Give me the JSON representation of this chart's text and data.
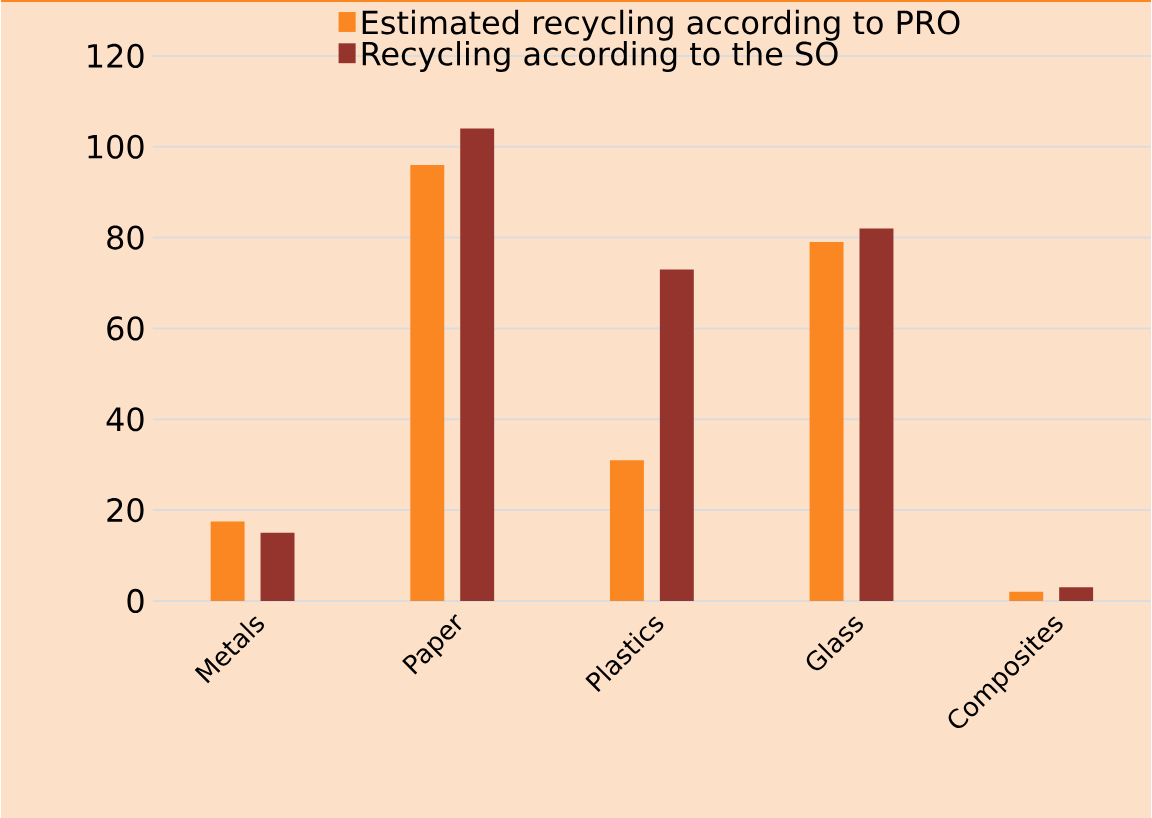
{
  "chart_data": {
    "type": "bar",
    "categories": [
      "Metals",
      "Paper",
      "Plastics",
      "Glass",
      "Composites"
    ],
    "series": [
      {
        "name": "Estimated recycling according to PRO",
        "color": "#fb8722",
        "values": [
          17.5,
          96,
          31,
          79,
          2
        ]
      },
      {
        "name": "Recycling according to the SO",
        "color": "#94342d",
        "values": [
          15,
          104,
          73,
          82,
          3
        ]
      }
    ],
    "ylim": [
      0,
      120
    ],
    "yticks": [
      0,
      20,
      40,
      60,
      80,
      100,
      120
    ],
    "grid": "y",
    "legend": "top"
  }
}
